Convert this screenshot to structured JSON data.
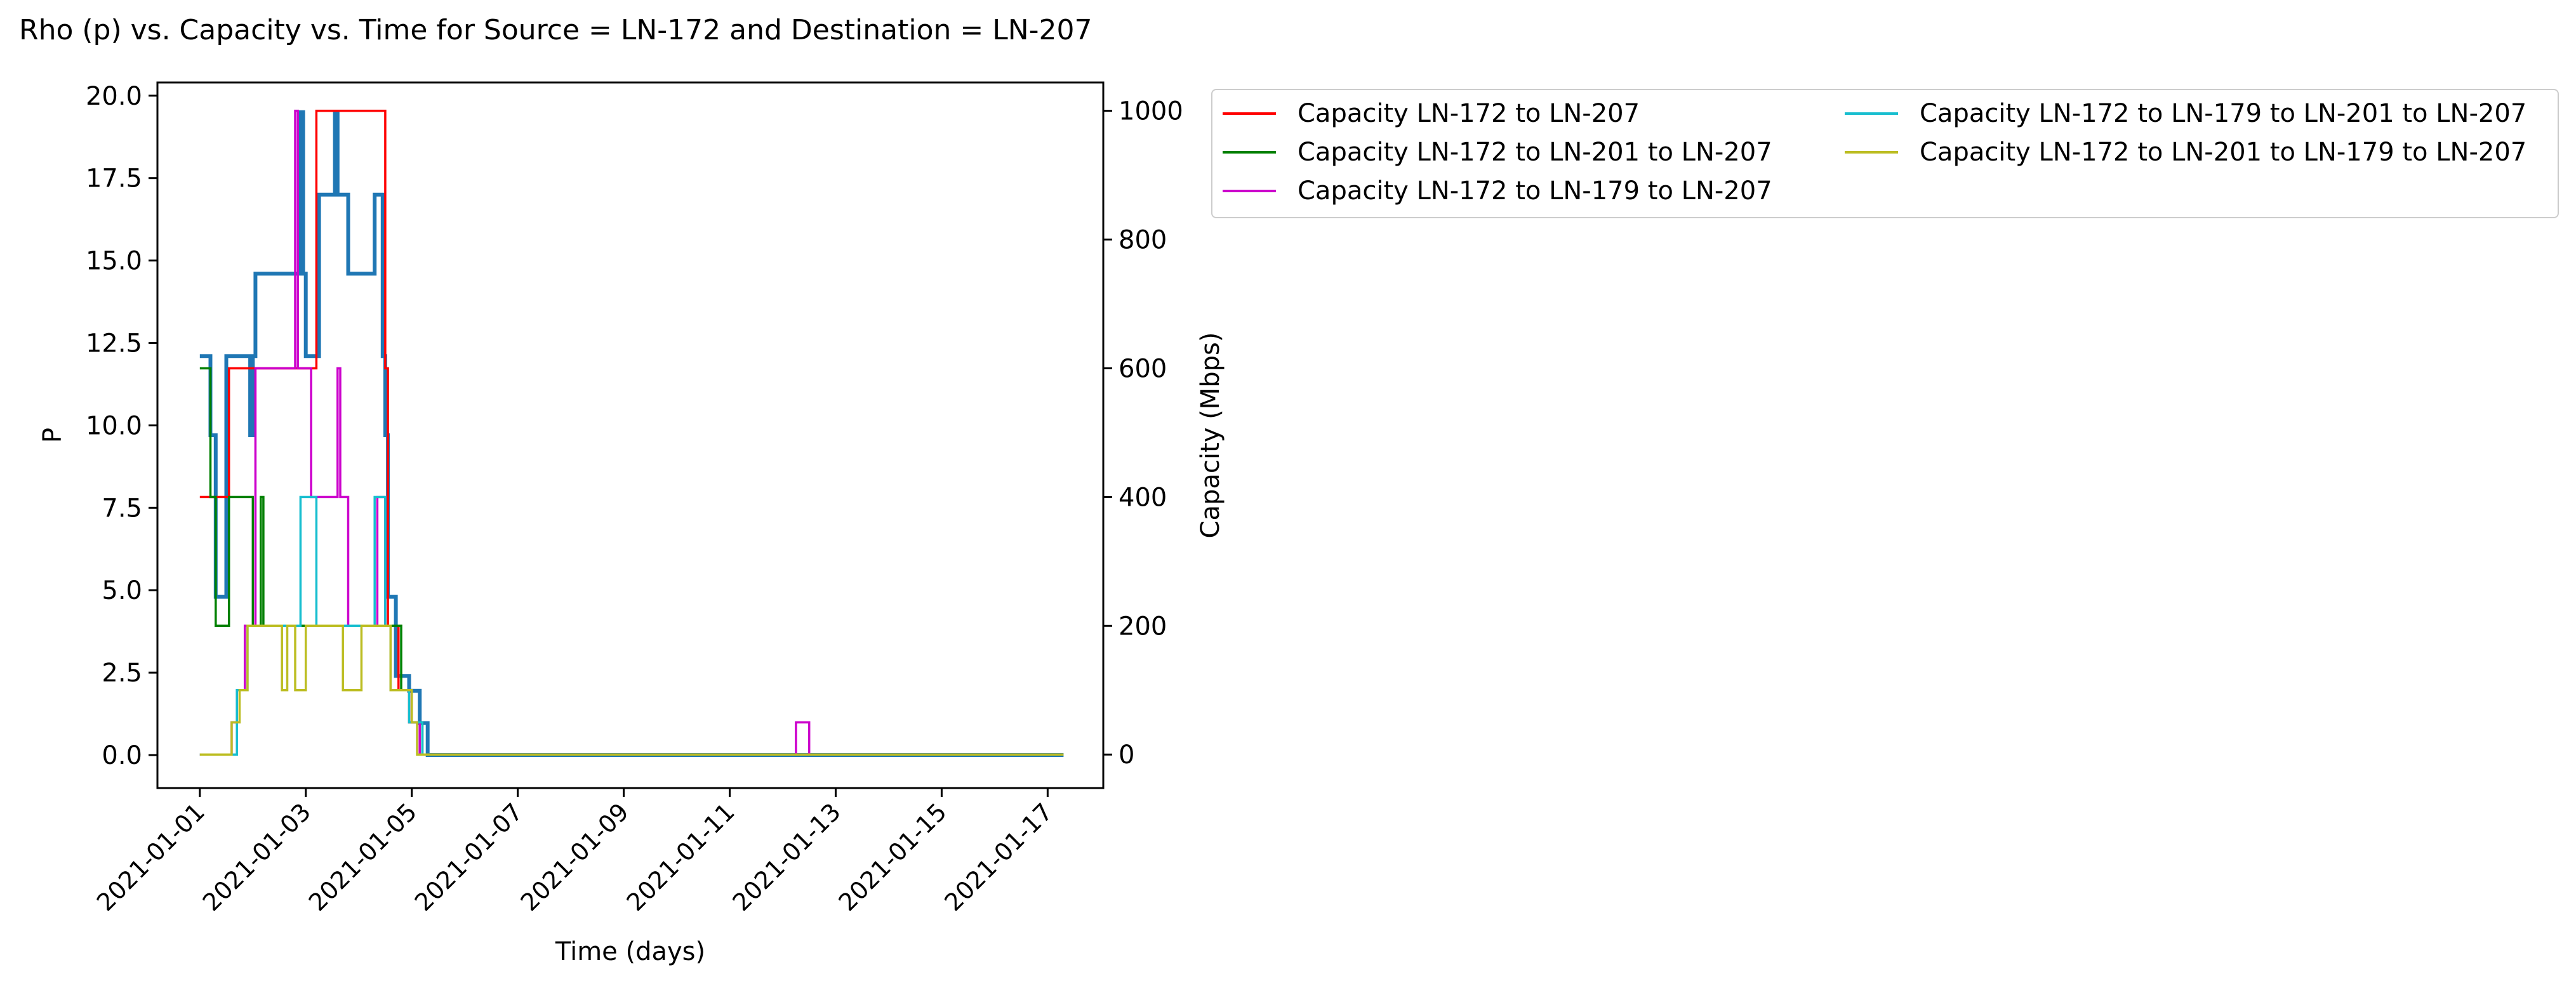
{
  "chart_data": {
    "type": "line",
    "title": "Rho (p) vs. Capacity vs. Time for Source = LN-172 and Destination = LN-207",
    "xlabel": "Time (days)",
    "ylabel_left": "P",
    "ylabel_right": "Capacity (Mbps)",
    "x_ticks": [
      "2021-01-01",
      "2021-01-03",
      "2021-01-05",
      "2021-01-07",
      "2021-01-09",
      "2021-01-11",
      "2021-01-13",
      "2021-01-15",
      "2021-01-17"
    ],
    "y_left_ticks": [
      "0.0",
      "2.5",
      "5.0",
      "7.5",
      "10.0",
      "12.5",
      "15.0",
      "17.5",
      "20.0"
    ],
    "y_right_ticks": [
      "0",
      "200",
      "400",
      "600",
      "800",
      "1000"
    ],
    "ylim_left": [
      -1.0,
      20.4
    ],
    "ylim_right": [
      -52,
      1044
    ],
    "xlim_days": [
      -0.8,
      17.05
    ],
    "legend_position": "outside right, top",
    "rho_series": {
      "name": "",
      "color": "#1f77b4",
      "step_points": [
        [
          0,
          12.1
        ],
        [
          0.2,
          9.7
        ],
        [
          0.3,
          4.8
        ],
        [
          0.5,
          12.1
        ],
        [
          0.95,
          9.7
        ],
        [
          1.0,
          12.1
        ],
        [
          1.05,
          14.6
        ],
        [
          1.9,
          19.5
        ],
        [
          1.95,
          14.6
        ],
        [
          2.0,
          12.1
        ],
        [
          2.25,
          17.0
        ],
        [
          2.55,
          19.5
        ],
        [
          2.6,
          17.0
        ],
        [
          2.8,
          14.6
        ],
        [
          3.3,
          17.0
        ],
        [
          3.45,
          12.1
        ],
        [
          3.5,
          9.7
        ],
        [
          3.55,
          4.8
        ],
        [
          3.7,
          2.4
        ],
        [
          3.95,
          1.95
        ],
        [
          4.15,
          0.97
        ],
        [
          4.3,
          0.0
        ],
        [
          16.3,
          0.0
        ]
      ]
    },
    "series": [
      {
        "name": "Capacity LN-172 to LN-207",
        "color": "#ff0000",
        "step_points": [
          [
            0,
            400
          ],
          [
            0.55,
            600
          ],
          [
            2.2,
            1000
          ],
          [
            3.5,
            600
          ],
          [
            3.55,
            200
          ],
          [
            3.75,
            100
          ],
          [
            3.95,
            50
          ],
          [
            4.15,
            0
          ],
          [
            16.3,
            0
          ]
        ]
      },
      {
        "name": "Capacity LN-172 to LN-201 to LN-207",
        "color": "#008000",
        "step_points": [
          [
            0,
            600
          ],
          [
            0.2,
            400
          ],
          [
            0.3,
            200
          ],
          [
            0.55,
            400
          ],
          [
            1.0,
            200
          ],
          [
            1.15,
            400
          ],
          [
            1.2,
            200
          ],
          [
            1.35,
            200
          ],
          [
            3.6,
            200
          ],
          [
            3.8,
            100
          ],
          [
            4.0,
            50
          ],
          [
            4.2,
            0
          ],
          [
            16.3,
            0
          ]
        ]
      },
      {
        "name": "Capacity LN-172 to LN-179 to LN-207",
        "color": "#cc00cc",
        "step_points": [
          [
            0,
            0
          ],
          [
            0.6,
            50
          ],
          [
            0.7,
            100
          ],
          [
            0.85,
            200
          ],
          [
            1.05,
            600
          ],
          [
            1.8,
            1000
          ],
          [
            1.85,
            600
          ],
          [
            2.1,
            400
          ],
          [
            2.6,
            600
          ],
          [
            2.65,
            400
          ],
          [
            2.8,
            200
          ],
          [
            3.35,
            400
          ],
          [
            3.5,
            200
          ],
          [
            3.6,
            100
          ],
          [
            4.0,
            50
          ],
          [
            4.15,
            0
          ],
          [
            11.2,
            0
          ],
          [
            11.25,
            50
          ],
          [
            11.5,
            0
          ],
          [
            16.3,
            0
          ]
        ]
      },
      {
        "name": "Capacity LN-172 to LN-179 to LN-201 to LN-207",
        "color": "#17becf",
        "step_points": [
          [
            0,
            0
          ],
          [
            0.7,
            100
          ],
          [
            0.9,
            200
          ],
          [
            1.9,
            400
          ],
          [
            2.2,
            200
          ],
          [
            3.3,
            400
          ],
          [
            3.5,
            200
          ],
          [
            3.6,
            100
          ],
          [
            3.95,
            50
          ],
          [
            4.2,
            0
          ],
          [
            16.3,
            0
          ]
        ]
      },
      {
        "name": "Capacity LN-172 to LN-201 to LN-179 to LN-207",
        "color": "#bcbd22",
        "step_points": [
          [
            0,
            0
          ],
          [
            0.6,
            50
          ],
          [
            0.75,
            100
          ],
          [
            0.9,
            200
          ],
          [
            1.55,
            100
          ],
          [
            1.65,
            200
          ],
          [
            1.8,
            100
          ],
          [
            2.0,
            200
          ],
          [
            2.7,
            100
          ],
          [
            3.05,
            200
          ],
          [
            3.6,
            100
          ],
          [
            4.0,
            50
          ],
          [
            4.1,
            0
          ],
          [
            16.3,
            0
          ]
        ]
      }
    ]
  }
}
